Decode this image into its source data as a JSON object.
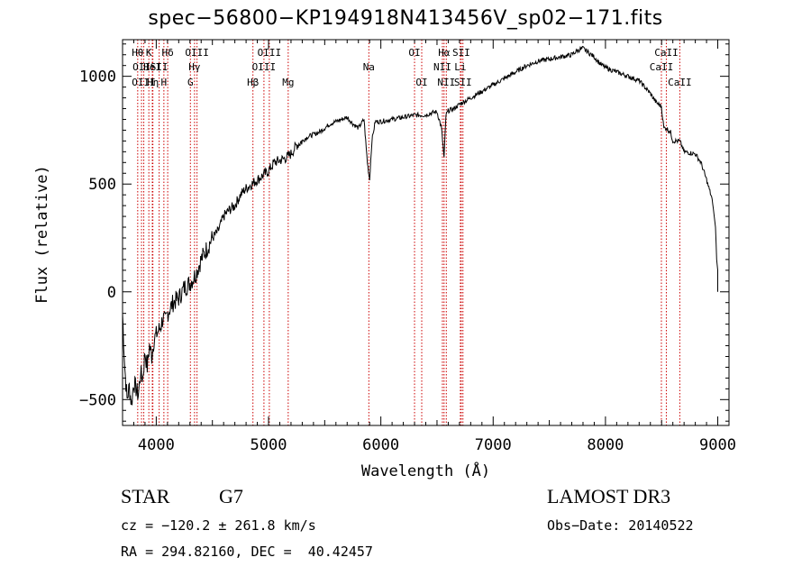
{
  "chart_data": {
    "type": "line",
    "title": "spec−56800−KP194918N413456V_sp02−171.fits",
    "xlabel": "Wavelength (Å)",
    "ylabel": "Flux (relative)",
    "xlim": [
      3700,
      9100
    ],
    "ylim": [
      -620,
      1170
    ],
    "xticks": [
      4000,
      5000,
      6000,
      7000,
      8000,
      9000
    ],
    "yticks": [
      -500,
      0,
      500,
      1000
    ],
    "grid": false,
    "line_color": "#000000",
    "marker_color": "#cc0000",
    "series": [
      {
        "x": [
          3700,
          3720,
          3740,
          3760,
          3780,
          3800,
          3820,
          3840,
          3860,
          3880,
          3900,
          3920,
          3940,
          3960,
          3980,
          4000,
          4020,
          4040,
          4060,
          4080,
          4100,
          4150,
          4200,
          4250,
          4300,
          4350,
          4400,
          4450,
          4500,
          4550,
          4600,
          4650,
          4700,
          4750,
          4800,
          4850,
          4900,
          4950,
          5000,
          5050,
          5100,
          5150,
          5200,
          5250,
          5300,
          5350,
          5400,
          5450,
          5500,
          5550,
          5600,
          5650,
          5700,
          5750,
          5800,
          5850,
          5880,
          5900,
          5920,
          5950,
          6000,
          6100,
          6200,
          6300,
          6400,
          6450,
          6500,
          6540,
          6563,
          6580,
          6600,
          6650,
          6700,
          6800,
          6900,
          7000,
          7100,
          7200,
          7300,
          7400,
          7500,
          7600,
          7700,
          7750,
          7800,
          7850,
          7900,
          7950,
          8000,
          8100,
          8200,
          8300,
          8400,
          8450,
          8498,
          8520,
          8542,
          8580,
          8600,
          8662,
          8700,
          8800,
          8850,
          8900,
          8950,
          8980,
          8990,
          9000
        ],
        "y": [
          -100,
          -350,
          -500,
          -440,
          -520,
          -420,
          -450,
          -480,
          -380,
          -400,
          -280,
          -350,
          -250,
          -300,
          -220,
          -200,
          -180,
          -160,
          -120,
          -140,
          -100,
          -50,
          -30,
          20,
          40,
          80,
          150,
          200,
          250,
          280,
          350,
          380,
          400,
          450,
          480,
          500,
          520,
          540,
          560,
          600,
          610,
          620,
          640,
          680,
          700,
          720,
          730,
          740,
          760,
          780,
          790,
          800,
          810,
          780,
          760,
          800,
          600,
          520,
          700,
          790,
          790,
          800,
          810,
          820,
          820,
          830,
          835,
          760,
          620,
          820,
          840,
          850,
          870,
          900,
          930,
          960,
          990,
          1020,
          1050,
          1070,
          1080,
          1090,
          1100,
          1120,
          1130,
          1110,
          1090,
          1060,
          1040,
          1020,
          1000,
          980,
          920,
          880,
          860,
          760,
          760,
          740,
          700,
          700,
          650,
          640,
          600,
          520,
          430,
          300,
          150,
          100
        ]
      }
    ],
    "line_markers": [
      {
        "wavelength": 3835,
        "label": "Hθ",
        "row": 1
      },
      {
        "wavelength": 3869,
        "label": "OII",
        "row": 2
      },
      {
        "wavelength": 3889,
        "label": "OIII",
        "row": 3
      },
      {
        "wavelength": 3934,
        "label": "K",
        "row": 1
      },
      {
        "wavelength": 3965,
        "label": "HeI",
        "row": 2
      },
      {
        "wavelength": 3970,
        "label": "Hη",
        "row": 3
      },
      {
        "wavelength": 4026,
        "label": "SII",
        "row": 2
      },
      {
        "wavelength": 4068,
        "label": "H",
        "row": 3
      },
      {
        "wavelength": 4102,
        "label": "Hδ",
        "row": 1
      },
      {
        "wavelength": 4304,
        "label": "G",
        "row": 3
      },
      {
        "wavelength": 4341,
        "label": "Hγ",
        "row": 2
      },
      {
        "wavelength": 4363,
        "label": "OIII",
        "row": 1
      },
      {
        "wavelength": 4861,
        "label": "Hβ",
        "row": 3
      },
      {
        "wavelength": 4959,
        "label": "OIII",
        "row": 2
      },
      {
        "wavelength": 5007,
        "label": "OIII",
        "row": 1
      },
      {
        "wavelength": 5175,
        "label": "Mg",
        "row": 3
      },
      {
        "wavelength": 5893,
        "label": "Na",
        "row": 2
      },
      {
        "wavelength": 6300,
        "label": "OI",
        "row": 1
      },
      {
        "wavelength": 6364,
        "label": "OI",
        "row": 3
      },
      {
        "wavelength": 6548,
        "label": "NII",
        "row": 2
      },
      {
        "wavelength": 6563,
        "label": "Hα",
        "row": 1
      },
      {
        "wavelength": 6583,
        "label": "NII",
        "row": 3
      },
      {
        "wavelength": 6708,
        "label": "Li",
        "row": 2
      },
      {
        "wavelength": 6716,
        "label": "SII",
        "row": 1
      },
      {
        "wavelength": 6731,
        "label": "SII",
        "row": 3
      },
      {
        "wavelength": 8498,
        "label": "CaII",
        "row": 2
      },
      {
        "wavelength": 8542,
        "label": "CaII",
        "row": 1
      },
      {
        "wavelength": 8662,
        "label": "CaII",
        "row": 3
      }
    ]
  },
  "info": {
    "object_class": "STAR",
    "subclass": "G7",
    "survey": "LAMOST DR3",
    "cz": "cz = −120.2 ± 261.8 km/s",
    "obs_date": "Obs−Date: 20140522",
    "coords": "RA = 294.82160, DEC =  40.42457"
  }
}
